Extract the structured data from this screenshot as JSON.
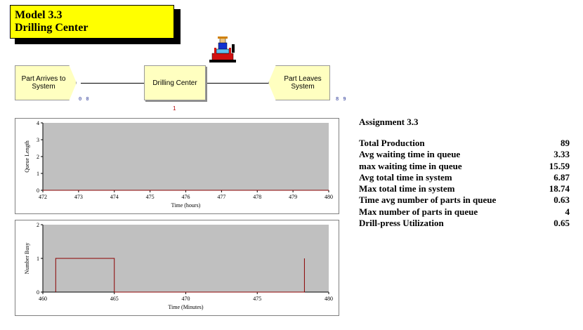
{
  "title": {
    "line1": "Model 3.3",
    "line2": "Drilling Center"
  },
  "modules": [
    {
      "label": "Part Arrives to System",
      "counter": "0 0"
    },
    {
      "label": "Drilling Center",
      "counter": "1"
    },
    {
      "label": "Part Leaves System",
      "counter": "8 9"
    }
  ],
  "plots": [
    {
      "ylabel": "Queue Length",
      "xlabel": "Time (hours)",
      "x_ticks": [
        "472",
        "473",
        "474",
        "475",
        "476",
        "477",
        "478",
        "479",
        "480"
      ],
      "y_ticks": [
        "0",
        "1",
        "2",
        "3",
        "4"
      ]
    },
    {
      "ylabel": "Number Busy",
      "xlabel": "Time (Minutes)",
      "x_ticks": [
        "460",
        "465",
        "470",
        "475",
        "480"
      ],
      "y_ticks": [
        "0",
        "1",
        "2"
      ]
    }
  ],
  "chart_data": [
    {
      "type": "line",
      "ylabel": "Queue Length",
      "xlabel": "Time (hours)",
      "xlim": [
        472,
        480
      ],
      "ylim": [
        0,
        4
      ],
      "series": [
        {
          "x": [
            472,
            480
          ],
          "y": [
            0,
            0
          ]
        }
      ],
      "color": "#8b0000"
    },
    {
      "type": "line",
      "ylabel": "Number Busy",
      "xlabel": "Time (Minutes)",
      "xlim": [
        460,
        480
      ],
      "ylim": [
        0,
        2
      ],
      "series": [
        {
          "x": [
            460.9,
            460.9,
            465.0,
            465.0,
            478.3,
            478.3
          ],
          "y": [
            0,
            1,
            1,
            0,
            0,
            1
          ]
        }
      ],
      "color": "#8b0000"
    }
  ],
  "stats": {
    "heading": "Assignment 3.3",
    "rows": [
      {
        "label": "Total Production",
        "value": "89"
      },
      {
        "label": "Avg waiting time in queue",
        "value": "3.33"
      },
      {
        "label": "max waiting time in queue",
        "value": "15.59"
      },
      {
        "label": "Avg total time in system",
        "value": "6.87"
      },
      {
        "label": "Max total time in system",
        "value": "18.74"
      },
      {
        "label": "Time avg number of parts in queue",
        "value": "0.63"
      },
      {
        "label": "Max number of parts in queue",
        "value": "4"
      },
      {
        "label": "Drill-press Utilization",
        "value": "0.65"
      }
    ]
  },
  "colors": {
    "title_bg": "#ffff00",
    "module_bg": "#ffffc0",
    "plot_bg": "#c0c0c0",
    "trace": "#8b0000"
  }
}
